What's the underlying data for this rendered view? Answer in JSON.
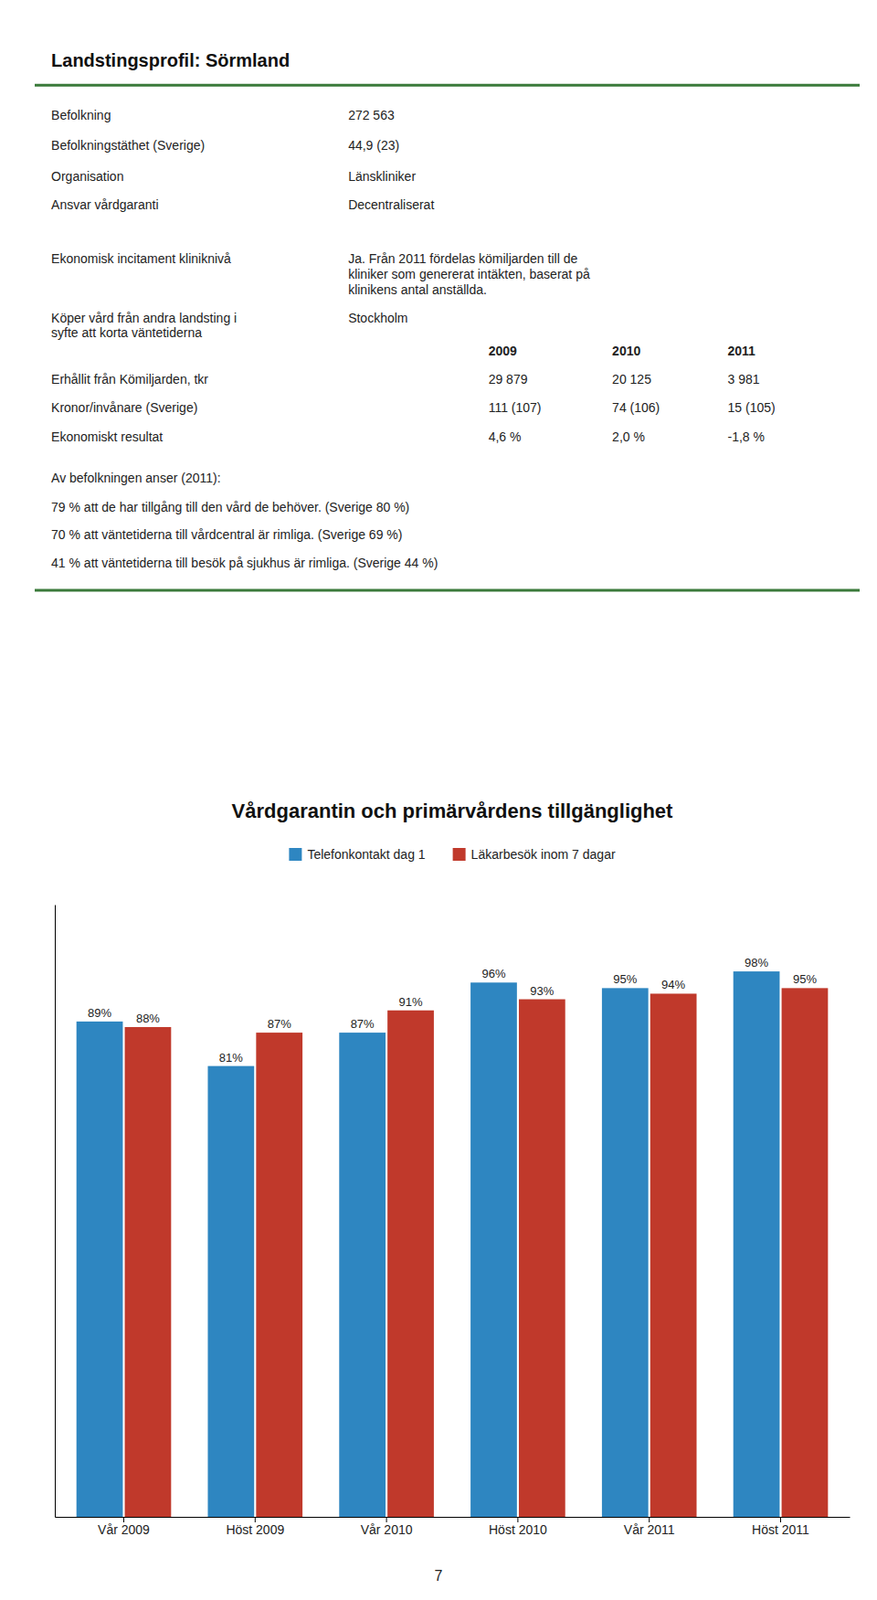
{
  "profile": {
    "title": "Landstingsprofil: Sörmland",
    "color": "#3a7a3a",
    "info_rows": [
      {
        "label": "Befolkning",
        "value": "272 563"
      },
      {
        "label": "Befolkningstäthet (Sverige)",
        "value": "44,9 (23)"
      },
      {
        "label": "Organisation",
        "value": "Länskliniker"
      },
      {
        "label": "Ansvar vårdgaranti",
        "value": "Decentraliserat"
      },
      {
        "label": "Ekonomisk incitament kliniknivå",
        "value": "Ja. Från 2011 fördelas kömiljarden till de\nkliniker som genererat intäkten, baserat på\nklinikens antal anställda."
      },
      {
        "label": "Köper vård från andra landsting i\nsyfte att korta väntetiderna",
        "value": "Stockholm"
      }
    ],
    "table": {
      "headers": [
        "2009",
        "2010",
        "2011"
      ],
      "rows": [
        {
          "label": "Erhållit från Kömiljarden, tkr",
          "values": [
            "29 879",
            "20 125",
            "3 981"
          ]
        },
        {
          "label": "Kronor/invånare (Sverige)",
          "values": [
            "111 (107)",
            "74 (106)",
            "15 (105)"
          ]
        },
        {
          "label": "Ekonomiskt resultat",
          "values": [
            "4,6 %",
            "2,0 %",
            "-1,8 %"
          ]
        }
      ]
    },
    "population_text": "Av befolkningen anser (2011):",
    "population_items": [
      "79 % att de har tillgång till den vård de behöver. (Sverige 80 %)",
      "70 % att väntetiderna till vårdcentral är rimliga. (Sverige 69 %)",
      "41 % att väntetiderna till besök på sjukhus är rimliga. (Sverige 44 %)"
    ]
  },
  "chart_data": {
    "type": "bar",
    "title": "Vårdgarantin och primärvårdens tillgänglighet",
    "categories": [
      "Vår 2009",
      "Höst 2009",
      "Vår 2010",
      "Höst 2010",
      "Vår 2011",
      "Höst 2011"
    ],
    "series": [
      {
        "name": "Telefonkontakt dag 1",
        "color": "#2E86C1",
        "values": [
          89,
          81,
          87,
          96,
          95,
          98
        ],
        "value_labels": [
          "89%",
          "81%",
          "87%",
          "96%",
          "95%",
          "98%"
        ]
      },
      {
        "name": "Läkarbesök inom 7 dagar",
        "color": "#C0392B",
        "values": [
          88,
          87,
          91,
          93,
          94,
          95
        ],
        "value_labels": [
          "88%",
          "87%",
          "91%",
          "93%",
          "94%",
          "95%"
        ]
      }
    ],
    "ylim": [
      0,
      110
    ],
    "data_labels": true,
    "tick_labels": "x",
    "legend": "top"
  },
  "page_number": "7"
}
